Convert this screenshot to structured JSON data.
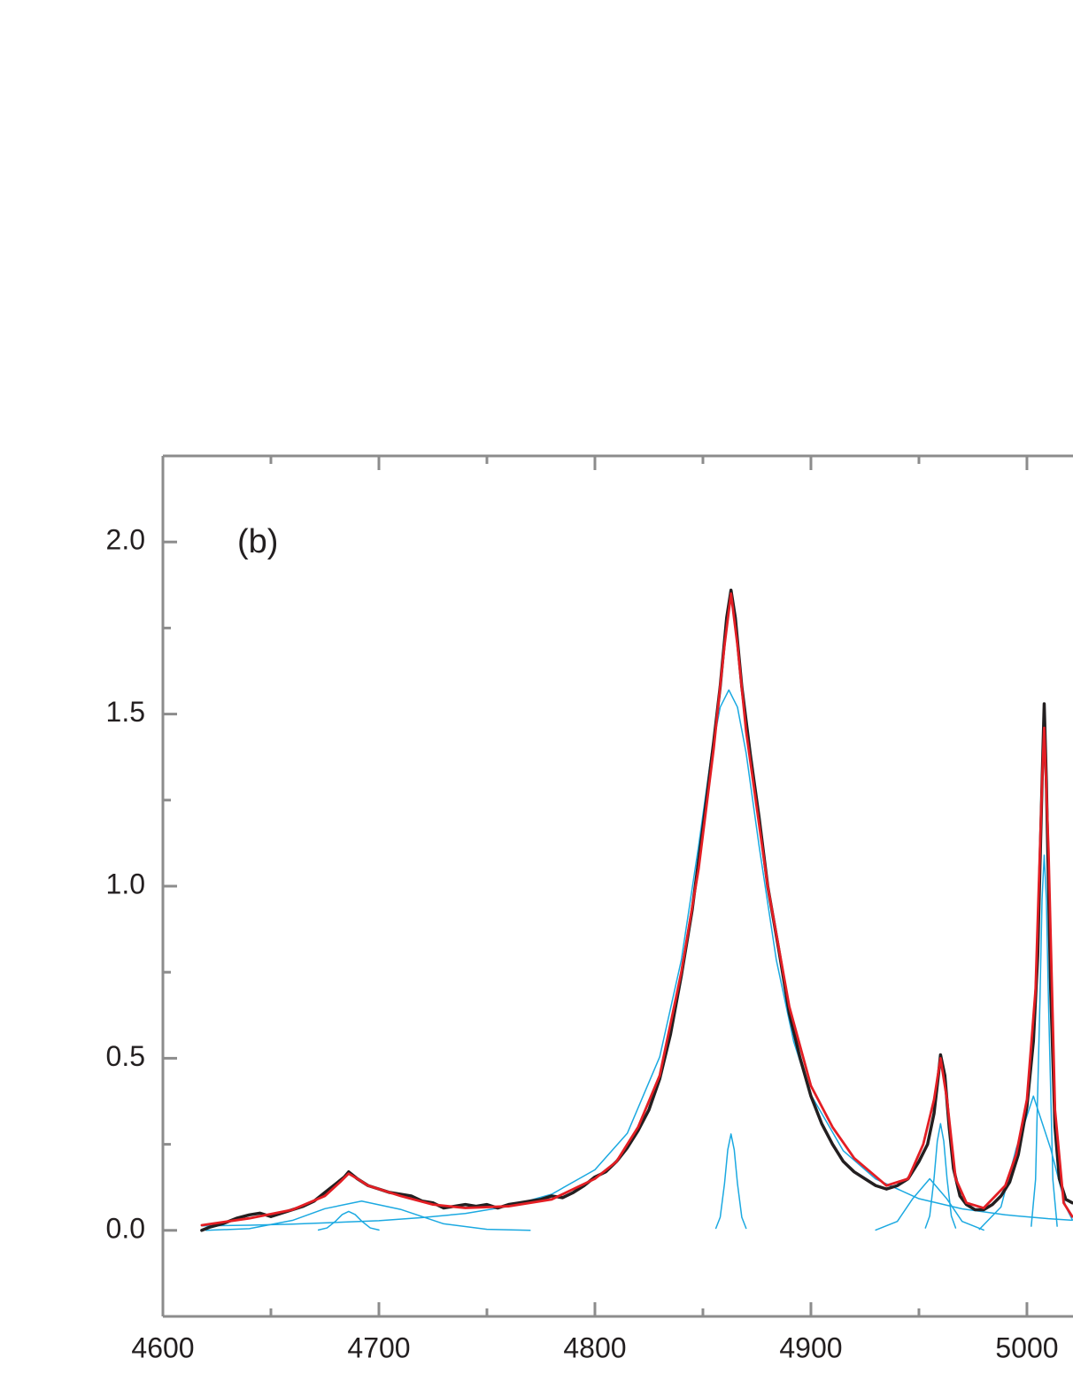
{
  "chart_data": {
    "type": "line",
    "annotation": "(b)",
    "xlim": [
      4600,
      5021
    ],
    "ylim": [
      -0.25,
      2.25
    ],
    "xticks": [
      4600,
      4700,
      4800,
      4900,
      5000
    ],
    "xminorticks": [
      4650,
      4750,
      4850,
      4950
    ],
    "yticks": [
      {
        "value": 0,
        "label": "0.0"
      },
      {
        "value": 0.5,
        "label": "0.5"
      },
      {
        "value": 1,
        "label": "1.0"
      },
      {
        "value": 1.5,
        "label": "1.5"
      },
      {
        "value": 2,
        "label": "2.0"
      }
    ],
    "yminorticks": [
      0.25,
      0.75,
      1.25,
      1.75
    ],
    "series": [
      {
        "color": "#1ba9e1",
        "width": 1.5,
        "x": [
          4618,
          4640,
          4660,
          4680,
          4700,
          4720,
          4740,
          4760,
          4780,
          4800,
          4815,
          4830,
          4840,
          4848,
          4854,
          4858,
          4862,
          4866,
          4870,
          4876,
          4884,
          4892,
          4900,
          4915,
          4930,
          4950,
          4970,
          4990,
          5010,
          5021
        ],
        "values": [
          0.013,
          0.015,
          0.018,
          0.023,
          0.028,
          0.037,
          0.049,
          0.07,
          0.105,
          0.176,
          0.282,
          0.504,
          0.785,
          1.117,
          1.387,
          1.52,
          1.57,
          1.52,
          1.387,
          1.117,
          0.785,
          0.549,
          0.394,
          0.231,
          0.149,
          0.092,
          0.0625,
          0.045,
          0.0339,
          0.0295
        ]
      },
      {
        "color": "#1ba9e1",
        "width": 1.5,
        "x": [
          4620,
          4640,
          4660,
          4675,
          4692,
          4710,
          4730,
          4750,
          4770
        ],
        "values": [
          0.0,
          0.005,
          0.029,
          0.063,
          0.085,
          0.061,
          0.019,
          0.003,
          0.0
        ]
      },
      {
        "color": "#1ba9e1",
        "width": 1.5,
        "x": [
          4672,
          4676,
          4680,
          4683,
          4686,
          4689,
          4692,
          4696,
          4700
        ],
        "values": [
          0.001,
          0.007,
          0.027,
          0.046,
          0.055,
          0.046,
          0.027,
          0.007,
          0.001
        ]
      },
      {
        "color": "#1ba9e1",
        "width": 1.5,
        "x": [
          4856,
          4858,
          4860,
          4861.5,
          4863,
          4864.5,
          4866,
          4868,
          4870
        ],
        "values": [
          0.006,
          0.038,
          0.136,
          0.234,
          0.28,
          0.234,
          0.136,
          0.038,
          0.006
        ]
      },
      {
        "color": "#1ba9e1",
        "width": 1.5,
        "x": [
          4930,
          4940,
          4947,
          4955,
          4963,
          4970,
          4980
        ],
        "values": [
          0.001,
          0.026,
          0.091,
          0.15,
          0.091,
          0.026,
          0.001
        ]
      },
      {
        "color": "#1ba9e1",
        "width": 1.5,
        "x": [
          4953,
          4955,
          4957,
          4958.5,
          4960,
          4961.5,
          4963,
          4965,
          4967
        ],
        "values": [
          0.007,
          0.042,
          0.151,
          0.259,
          0.31,
          0.259,
          0.151,
          0.042,
          0.007
        ]
      },
      {
        "color": "#1ba9e1",
        "width": 1.5,
        "x": [
          4978,
          4988,
          4995,
          5003,
          5011,
          5018,
          5021
        ],
        "values": [
          0.003,
          0.068,
          0.237,
          0.39,
          0.237,
          0.068,
          0.031
        ]
      },
      {
        "color": "#1ba9e1",
        "width": 1.5,
        "x": [
          5002,
          5004,
          5006,
          5007,
          5008,
          5009,
          5010,
          5012,
          5014
        ],
        "values": [
          0.012,
          0.148,
          0.661,
          0.962,
          1.09,
          0.962,
          0.661,
          0.148,
          0.012
        ]
      },
      {
        "color": "#231f20",
        "width": 3.5,
        "x": [
          4618,
          4622,
          4628,
          4634,
          4640,
          4645,
          4650,
          4655,
          4660,
          4665,
          4670,
          4675,
          4680,
          4684,
          4686,
          4690,
          4695,
          4700,
          4705,
          4710,
          4715,
          4720,
          4725,
          4730,
          4735,
          4740,
          4745,
          4750,
          4755,
          4760,
          4765,
          4770,
          4775,
          4780,
          4785,
          4790,
          4795,
          4800,
          4805,
          4810,
          4815,
          4820,
          4825,
          4830,
          4835,
          4840,
          4845,
          4850,
          4855,
          4858,
          4861,
          4863,
          4865,
          4868,
          4872,
          4876,
          4880,
          4885,
          4890,
          4895,
          4900,
          4905,
          4910,
          4915,
          4920,
          4925,
          4930,
          4935,
          4940,
          4945,
          4950,
          4954,
          4957,
          4959,
          4960,
          4962,
          4964,
          4966,
          4969,
          4972,
          4976,
          4980,
          4984,
          4988,
          4992,
          4996,
          5000,
          5003,
          5005,
          5007,
          5008,
          5009,
          5011,
          5013,
          5015,
          5018,
          5021
        ],
        "values": [
          0.0,
          0.01,
          0.02,
          0.035,
          0.045,
          0.05,
          0.04,
          0.05,
          0.06,
          0.07,
          0.085,
          0.11,
          0.135,
          0.155,
          0.17,
          0.15,
          0.13,
          0.12,
          0.11,
          0.105,
          0.1,
          0.085,
          0.08,
          0.065,
          0.07,
          0.075,
          0.07,
          0.075,
          0.065,
          0.075,
          0.08,
          0.085,
          0.09,
          0.1,
          0.095,
          0.11,
          0.13,
          0.155,
          0.17,
          0.2,
          0.24,
          0.29,
          0.35,
          0.44,
          0.57,
          0.74,
          0.93,
          1.17,
          1.42,
          1.58,
          1.78,
          1.86,
          1.78,
          1.58,
          1.38,
          1.2,
          1.0,
          0.82,
          0.63,
          0.5,
          0.39,
          0.31,
          0.25,
          0.2,
          0.17,
          0.15,
          0.13,
          0.12,
          0.13,
          0.15,
          0.2,
          0.25,
          0.34,
          0.45,
          0.51,
          0.45,
          0.3,
          0.18,
          0.1,
          0.075,
          0.06,
          0.06,
          0.075,
          0.1,
          0.14,
          0.22,
          0.36,
          0.55,
          0.8,
          1.3,
          1.53,
          1.3,
          0.7,
          0.3,
          0.15,
          0.09,
          0.08
        ]
      },
      {
        "color": "#e31e24",
        "width": 2.8,
        "x": [
          4618,
          4640,
          4660,
          4675,
          4682,
          4686,
          4690,
          4695,
          4710,
          4725,
          4740,
          4760,
          4780,
          4800,
          4810,
          4820,
          4830,
          4840,
          4848,
          4855,
          4860,
          4863,
          4866,
          4870,
          4880,
          4890,
          4900,
          4910,
          4920,
          4935,
          4945,
          4952,
          4957,
          4960,
          4963,
          4967,
          4972,
          4980,
          4990,
          4995,
          5000,
          5004,
          5007,
          5008,
          5010,
          5013,
          5017,
          5021
        ],
        "values": [
          0.015,
          0.035,
          0.06,
          0.1,
          0.14,
          0.165,
          0.15,
          0.13,
          0.1,
          0.075,
          0.065,
          0.07,
          0.09,
          0.15,
          0.2,
          0.3,
          0.45,
          0.75,
          1.05,
          1.4,
          1.7,
          1.85,
          1.7,
          1.45,
          1.0,
          0.65,
          0.42,
          0.3,
          0.21,
          0.13,
          0.15,
          0.25,
          0.38,
          0.5,
          0.38,
          0.15,
          0.08,
          0.065,
          0.13,
          0.22,
          0.38,
          0.7,
          1.3,
          1.46,
          1.1,
          0.35,
          0.08,
          0.04
        ]
      }
    ]
  }
}
